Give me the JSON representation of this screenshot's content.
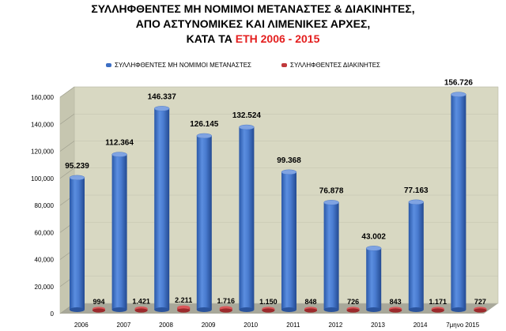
{
  "title": {
    "line1": "ΣΥΛΛΗΦΘΕΝΤΕΣ ΜΗ ΝΟΜΙΜΟΙ ΜΕΤΑΝΑΣΤΕΣ & ΔΙΑΚΙΝΗΤΕΣ,",
    "line2": "ΑΠΟ ΑΣΤΥΝΟΜΙΚΕΣ ΚΑΙ ΛΙΜΕΝΙΚΕΣ ΑΡΧΕΣ,",
    "line3_prefix": "ΚΑΤΑ ΤΑ ",
    "line3_highlight": "ΕΤΗ 2006 - 2015",
    "highlight_color": "#e41e1e"
  },
  "chart_data": {
    "type": "bar",
    "categories": [
      "2006",
      "2007",
      "2008",
      "2009",
      "2010",
      "2011",
      "2012",
      "2013",
      "2014",
      "7μηνο 2015"
    ],
    "series": [
      {
        "name": "ΣΥΛΛΗΦΘΕΝΤΕΣ ΜΗ ΝΟΜΙΜΟΙ ΜΕΤΑΝΑΣΤΕΣ",
        "color": "#3d6fc4",
        "values": [
          95239,
          112364,
          146337,
          126145,
          132524,
          99368,
          76878,
          43002,
          77163,
          156726
        ],
        "labels": [
          "95.239",
          "112.364",
          "146.337",
          "126.145",
          "132.524",
          "99.368",
          "76.878",
          "43.002",
          "77.163",
          "156.726"
        ]
      },
      {
        "name": "ΣΥΛΛΗΦΘΕΝΤΕΣ ΔΙΑΚΙΝΗΤΕΣ",
        "color": "#c0393b",
        "values": [
          994,
          1421,
          2211,
          1716,
          1150,
          848,
          726,
          843,
          1171,
          727
        ],
        "labels": [
          "994",
          "1.421",
          "2.211",
          "1.716",
          "1.150",
          "848",
          "726",
          "843",
          "1.171",
          "727"
        ]
      }
    ],
    "ylim": [
      0,
      160000
    ],
    "yticks": [
      0,
      20000,
      40000,
      60000,
      80000,
      100000,
      120000,
      140000,
      160000
    ],
    "ytick_labels": [
      "0",
      "20,000",
      "40,000",
      "60,000",
      "80,000",
      "100,000",
      "120,000",
      "140,000",
      "160,000"
    ],
    "wall_color": "#d8d8c2",
    "floor_color": "#a8a89a",
    "legend_position": "top"
  }
}
